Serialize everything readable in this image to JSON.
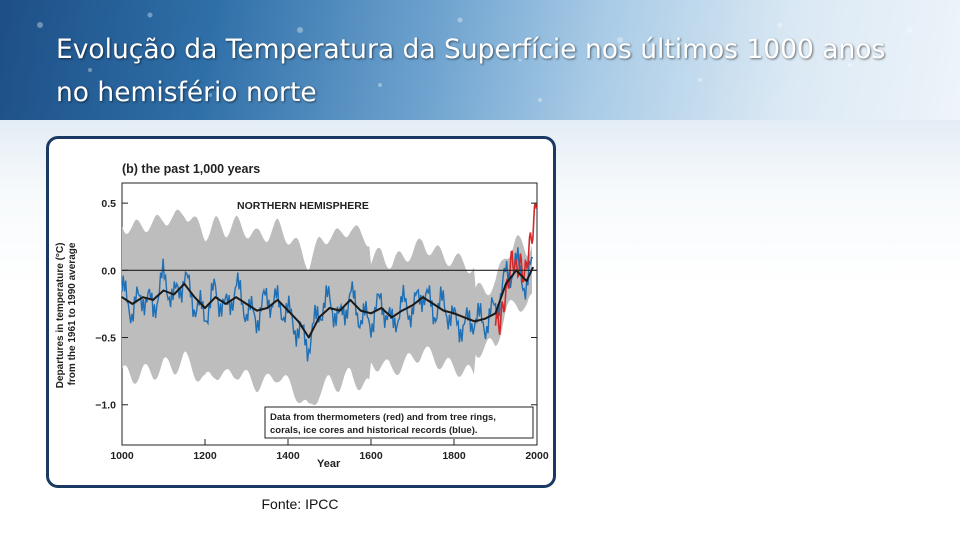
{
  "slide": {
    "title": "Evolução da Temperatura da Superfície nos últimos 1000 anos no hemisfério norte",
    "source": "Fonte: IPCC"
  },
  "colors": {
    "banner_dark": "#1d4f86",
    "frame_border": "#1b3a63",
    "uncertainty": "#bdbdbd",
    "proxy_annual": "#1f6fb5",
    "smoothed": "#1a1a1a",
    "instrumental": "#d62728"
  },
  "chart_data": {
    "type": "line",
    "panel_title": "(b) the past 1,000 years",
    "region_label": "NORTHERN HEMISPHERE",
    "ylabel": "Departures in temperature (°C) from the 1961 to 1990 average",
    "xlabel": "Year",
    "xlim": [
      1000,
      2000
    ],
    "ylim": [
      -1.3,
      0.65
    ],
    "x_ticks": [
      "1000",
      "1200",
      "1400",
      "1600",
      "1800",
      "2000"
    ],
    "y_ticks": [
      "0.5",
      "0.0",
      "−0.5",
      "−1.0"
    ],
    "y_tick_values": [
      0.5,
      0.0,
      -0.5,
      -1.0
    ],
    "zero_line": 0.0,
    "legend_note": "Data from thermometers (red) and from tree rings, corals, ice cores and historical records (blue).",
    "series": [
      {
        "name": "smoothed (black)",
        "x": [
          1000,
          1025,
          1050,
          1075,
          1100,
          1125,
          1150,
          1175,
          1200,
          1225,
          1250,
          1275,
          1300,
          1325,
          1350,
          1375,
          1400,
          1425,
          1450,
          1475,
          1500,
          1525,
          1550,
          1575,
          1600,
          1625,
          1650,
          1675,
          1700,
          1725,
          1750,
          1775,
          1800,
          1825,
          1850,
          1875,
          1900,
          1925,
          1950,
          1975,
          1990
        ],
        "y": [
          -0.2,
          -0.25,
          -0.2,
          -0.22,
          -0.15,
          -0.18,
          -0.1,
          -0.2,
          -0.28,
          -0.2,
          -0.25,
          -0.2,
          -0.25,
          -0.3,
          -0.28,
          -0.22,
          -0.3,
          -0.38,
          -0.5,
          -0.35,
          -0.28,
          -0.3,
          -0.22,
          -0.3,
          -0.32,
          -0.28,
          -0.35,
          -0.3,
          -0.26,
          -0.2,
          -0.25,
          -0.3,
          -0.32,
          -0.35,
          -0.38,
          -0.36,
          -0.32,
          -0.1,
          0.0,
          -0.08,
          0.02
        ]
      },
      {
        "name": "tree rings, corals, ice cores and historical records (blue)",
        "x": [
          1000,
          1025,
          1050,
          1075,
          1100,
          1125,
          1150,
          1175,
          1200,
          1225,
          1250,
          1275,
          1300,
          1325,
          1350,
          1375,
          1400,
          1425,
          1450,
          1475,
          1500,
          1525,
          1550,
          1575,
          1600,
          1625,
          1650,
          1675,
          1700,
          1725,
          1750,
          1775,
          1800,
          1825,
          1850,
          1875,
          1900,
          1925,
          1950,
          1975,
          1990
        ],
        "y": [
          -0.15,
          -0.3,
          -0.18,
          -0.28,
          -0.05,
          -0.22,
          -0.05,
          -0.25,
          -0.33,
          -0.15,
          -0.3,
          -0.12,
          -0.3,
          -0.35,
          -0.2,
          -0.25,
          -0.32,
          -0.45,
          -0.55,
          -0.3,
          -0.22,
          -0.38,
          -0.18,
          -0.35,
          -0.38,
          -0.22,
          -0.42,
          -0.25,
          -0.3,
          -0.15,
          -0.3,
          -0.25,
          -0.38,
          -0.42,
          -0.35,
          -0.4,
          -0.28,
          -0.05,
          0.05,
          -0.12,
          0.05
        ]
      },
      {
        "name": "thermometers (red)",
        "x": [
          1900,
          1910,
          1920,
          1930,
          1940,
          1950,
          1960,
          1970,
          1980,
          1990,
          2000
        ],
        "y": [
          -0.35,
          -0.4,
          -0.25,
          -0.1,
          0.1,
          0.0,
          0.05,
          -0.05,
          0.15,
          0.3,
          0.55
        ]
      }
    ]
  }
}
